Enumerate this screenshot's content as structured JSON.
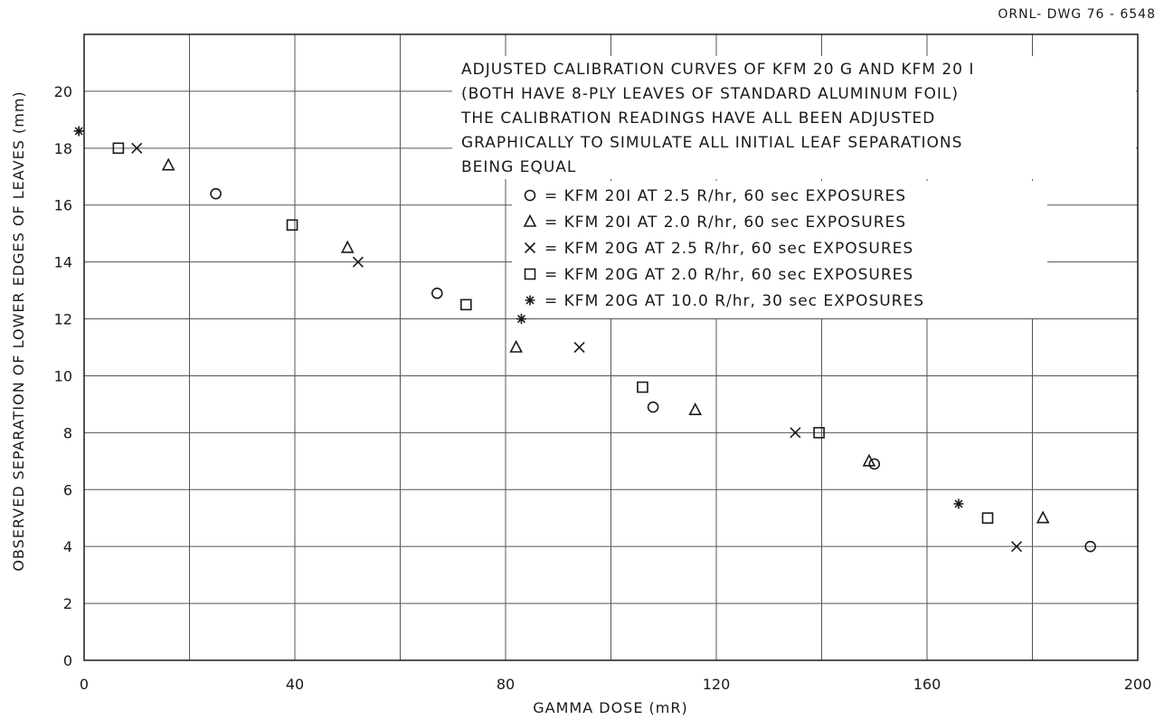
{
  "drawing_number": "ORNL- DWG 76 - 6548",
  "annotation": {
    "lines": [
      "ADJUSTED CALIBRATION CURVES OF KFM 20 G AND KFM 20 I",
      "(BOTH HAVE 8-PLY LEAVES OF STANDARD ALUMINUM FOIL)",
      "THE CALIBRATION READINGS HAVE ALL BEEN ADJUSTED",
      "GRAPHICALLY TO SIMULATE ALL INITIAL LEAF SEPARATIONS",
      "BEING EQUAL"
    ]
  },
  "chart_data": {
    "type": "scatter",
    "title": "",
    "xlabel": "GAMMA DOSE (mR)",
    "ylabel": "OBSERVED SEPARATION OF LOWER EDGES OF LEAVES (mm)",
    "xlim": [
      0,
      200
    ],
    "ylim": [
      0,
      22
    ],
    "xticks": [
      0,
      40,
      80,
      120,
      160,
      200
    ],
    "yticks": [
      0,
      2,
      4,
      6,
      8,
      10,
      12,
      14,
      16,
      18,
      20
    ],
    "grid": true,
    "legend_position": "upper-right",
    "series": [
      {
        "name": "KFM 20I AT 2.5 R/hr, 60 sec EXPOSURES",
        "marker": "circle",
        "x": [
          25,
          67,
          108,
          150,
          191
        ],
        "y": [
          16.4,
          12.9,
          8.9,
          6.9,
          4.0
        ]
      },
      {
        "name": "KFM 20I AT 2.0 R/hr, 60 sec EXPOSURES",
        "marker": "triangle",
        "x": [
          16,
          50,
          82,
          116,
          149,
          182
        ],
        "y": [
          17.4,
          14.5,
          11.0,
          8.8,
          7.0,
          5.0
        ]
      },
      {
        "name": "KFM 20G AT 2.5 R/hr, 60 sec EXPOSURES",
        "marker": "x",
        "x": [
          10,
          52,
          94,
          135,
          177
        ],
        "y": [
          18.0,
          14.0,
          11.0,
          8.0,
          4.0
        ]
      },
      {
        "name": "KFM 20G AT 2.0 R/hr, 60 sec EXPOSURES",
        "marker": "square",
        "x": [
          6.5,
          39.5,
          72.5,
          106,
          139.5,
          171.5
        ],
        "y": [
          18.0,
          15.3,
          12.5,
          9.6,
          8.0,
          5.0
        ]
      },
      {
        "name": "KFM 20G AT 10.0 R/hr, 30 sec EXPOSURES",
        "marker": "star",
        "x": [
          -1,
          83,
          166
        ],
        "y": [
          18.6,
          12.0,
          5.5
        ]
      }
    ],
    "legend_labels": [
      "= KFM 20I AT 2.5 R/hr, 60 sec EXPOSURES",
      "= KFM 20I AT 2.0 R/hr, 60 sec EXPOSURES",
      "= KFM 20G AT 2.5 R/hr, 60 sec EXPOSURES",
      "= KFM 20G AT 2.0 R/hr, 60 sec EXPOSURES",
      "= KFM 20G AT 10.0 R/hr, 30 sec EXPOSURES"
    ]
  }
}
